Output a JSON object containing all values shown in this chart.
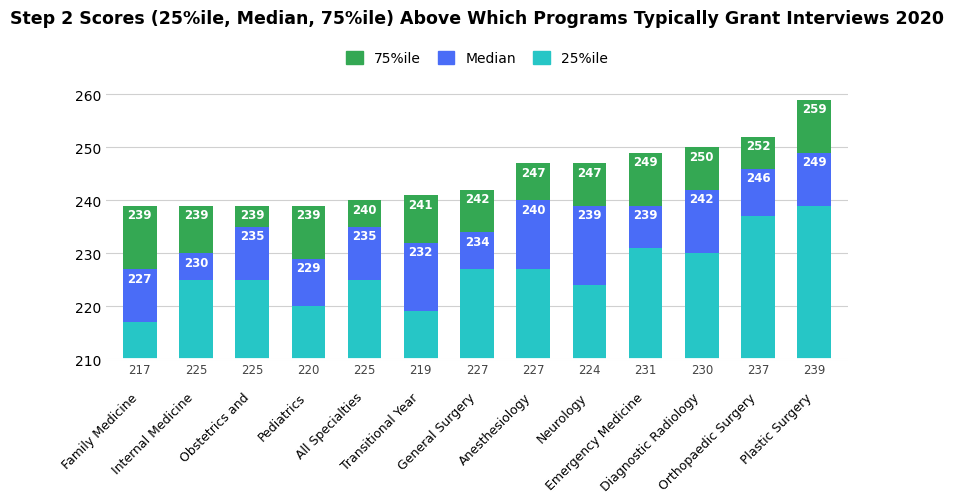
{
  "title": "Step 2 Scores (25%ile, Median, 75%ile) Above Which Programs Typically Grant Interviews 2020",
  "categories": [
    "Family Medicine",
    "Internal Medicine",
    "Obstetrics and",
    "Pediatrics",
    "All Specialties",
    "Transitional Year",
    "General Surgery",
    "Anesthesiology",
    "Neurology",
    "Emergency Medicine",
    "Diagnostic Radiology",
    "Orthopaedic Surgery",
    "Plastic Surgery"
  ],
  "p75": [
    239,
    239,
    239,
    239,
    240,
    241,
    242,
    247,
    247,
    249,
    250,
    252,
    259
  ],
  "median": [
    227,
    230,
    235,
    229,
    235,
    232,
    234,
    240,
    239,
    239,
    242,
    246,
    249
  ],
  "p25": [
    217,
    225,
    225,
    220,
    225,
    219,
    227,
    227,
    224,
    231,
    230,
    237,
    239
  ],
  "color_p75": "#34a853",
  "color_median": "#4a6cf7",
  "color_p25": "#26c6c6",
  "ylim_min": 210,
  "ylim_max": 263,
  "yticks": [
    210,
    220,
    230,
    240,
    250,
    260
  ],
  "legend_labels": [
    "75%ile",
    "Median",
    "25%ile"
  ],
  "bar_width": 0.6,
  "background_color": "#ffffff",
  "grid_color": "#d0d0d0",
  "label_fontsize": 8.5,
  "title_fontsize": 12.5
}
